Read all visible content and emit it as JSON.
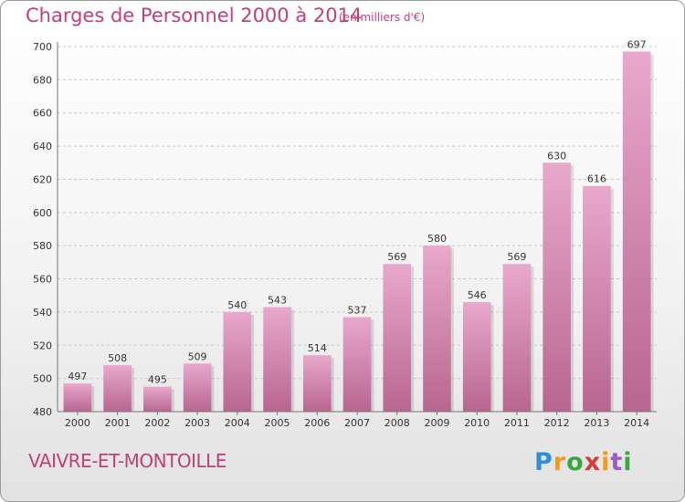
{
  "chart_data": {
    "type": "bar",
    "title": "Charges de Personnel 2000 à 2014",
    "unit_note": "(en milliers d'€)",
    "categories": [
      "2000",
      "2001",
      "2002",
      "2003",
      "2004",
      "2005",
      "2006",
      "2007",
      "2008",
      "2009",
      "2010",
      "2011",
      "2012",
      "2013",
      "2014"
    ],
    "values": [
      497,
      508,
      495,
      509,
      540,
      543,
      514,
      537,
      569,
      580,
      546,
      569,
      630,
      616,
      697
    ],
    "ylim": [
      480,
      700
    ],
    "yticks": [
      480,
      500,
      520,
      540,
      560,
      580,
      600,
      620,
      640,
      660,
      680,
      700
    ],
    "grid": true,
    "xlabel": "",
    "ylabel": "",
    "bar_color_top": "#e8a8cc",
    "bar_color_bottom": "#b8668f"
  },
  "footer": {
    "municipality": "VAIVRE-ET-MONTOILLE",
    "logo_text": "Proxiti"
  },
  "colors": {
    "accent": "#c0407a",
    "grid": "#c8c8c8"
  }
}
